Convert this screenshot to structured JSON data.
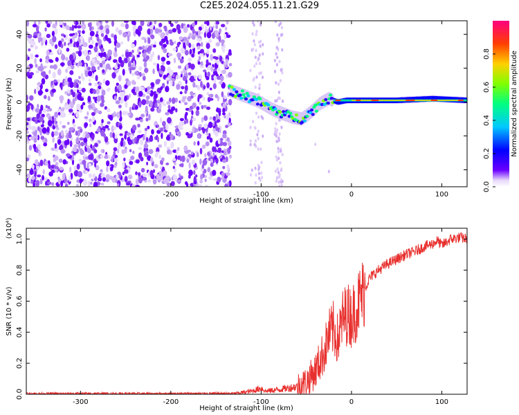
{
  "title": "C2E5.2024.055.11.21.G29",
  "chart_data": [
    {
      "type": "heatmap",
      "xlabel": "Height of straight line (km)",
      "ylabel": "Frequency (Hz)",
      "xlim": [
        -360,
        128
      ],
      "ylim": [
        -50,
        48
      ],
      "xticks": [
        -300,
        -200,
        -100,
        0,
        100
      ],
      "yticks": [
        -40,
        -20,
        0,
        20,
        40
      ],
      "colorbar": {
        "label": "Normalized spectral amplitude",
        "range": [
          0.0,
          1.0
        ],
        "ticks": [
          "0.0",
          "0.2",
          "0.4",
          "0.6",
          "0.8"
        ],
        "colors": [
          "#ffffff",
          "#d8b8f8",
          "#6a00ff",
          "#0000ff",
          "#00c8ff",
          "#00ff80",
          "#80ff00",
          "#ffd000",
          "#ff4000",
          "#ff0080"
        ]
      },
      "noise_region_x": [
        -360,
        -140
      ],
      "faint_bands_x": [
        [
          -112,
          -98
        ],
        [
          -85,
          -76
        ]
      ],
      "ridge": {
        "x": [
          -135,
          -120,
          -105,
          -95,
          -85,
          -75,
          -65,
          -55,
          -45,
          -35,
          -25,
          -15,
          -5,
          0,
          20,
          50,
          90,
          128
        ],
        "y": [
          7,
          4,
          1,
          -2,
          -5,
          -7,
          -9,
          -10,
          -6,
          -1,
          2,
          0,
          1,
          1,
          1,
          1,
          2,
          1
        ]
      }
    },
    {
      "type": "line",
      "xlabel": "Height of straight line (km)",
      "ylabel": "SNR (10 * v/v)",
      "yscale_label": "(x10⁴)",
      "xlim": [
        -360,
        128
      ],
      "ylim": [
        0,
        1.07
      ],
      "xticks": [
        -300,
        -200,
        -100,
        0,
        100
      ],
      "yticks": [
        "0.0",
        "0.2",
        "0.4",
        "0.6",
        "0.8",
        "1.0"
      ],
      "line_color": "#e8302e",
      "series": [
        {
          "x": [
            -360,
            -300,
            -200,
            -130,
            -110,
            -100,
            -95,
            -80,
            -60,
            -50,
            -40,
            -30,
            -25,
            -20,
            -15,
            -10,
            -5,
            0,
            5,
            10,
            15,
            20,
            30,
            40,
            50,
            60,
            70,
            80,
            90,
            95,
            100,
            110,
            120,
            128
          ],
          "y": [
            0.004,
            0.004,
            0.004,
            0.005,
            0.02,
            0.04,
            0.02,
            0.03,
            0.05,
            0.08,
            0.15,
            0.28,
            0.38,
            0.42,
            0.35,
            0.48,
            0.52,
            0.5,
            0.55,
            0.62,
            0.68,
            0.75,
            0.8,
            0.84,
            0.87,
            0.9,
            0.92,
            0.95,
            0.97,
            0.99,
            0.96,
            1.0,
            1.01,
            1.0
          ]
        }
      ]
    }
  ]
}
